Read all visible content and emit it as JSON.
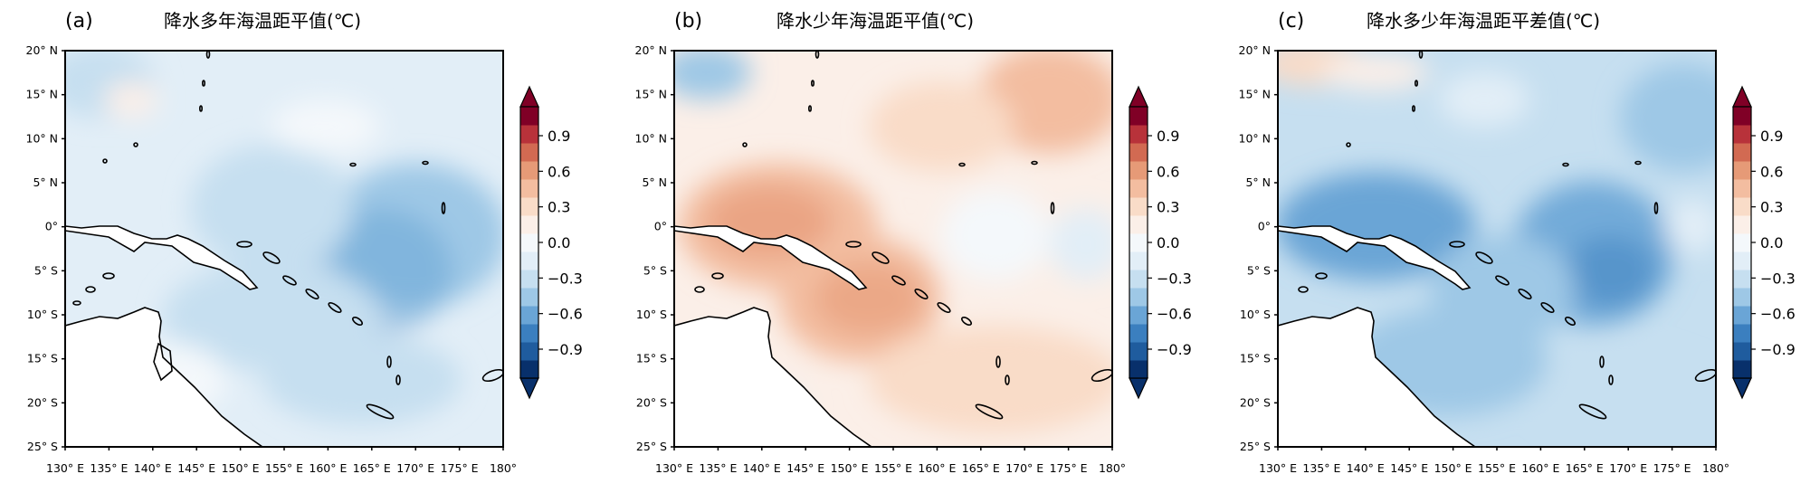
{
  "panels": [
    {
      "label": "(a)",
      "title": "降水多年海温距平值(℃)",
      "pattern": "weak-negative",
      "map_text": {
        "lat": [
          "20° N",
          "15° N",
          "10° N",
          "5° N",
          "0°",
          "5° S",
          "10° S",
          "15° S",
          "20° S",
          "25° S"
        ],
        "lon": [
          "130° E",
          "135° E",
          "140° E",
          "145° E",
          "150° E",
          "155° E",
          "160° E",
          "165° E",
          "170° E",
          "175° E",
          "180°"
        ]
      },
      "colorbar_ticks": [
        "0.9",
        "0.6",
        "0.3",
        "0.0",
        "−0.3",
        "−0.6",
        "−0.9"
      ]
    },
    {
      "label": "(b)",
      "title": "降水少年海温距平值(℃)",
      "pattern": "weak-positive",
      "map_text": {
        "lat": [
          "20° N",
          "15° N",
          "10° N",
          "5° N",
          "0°",
          "5° S",
          "10° S",
          "15° S",
          "20° S",
          "25° S"
        ],
        "lon": [
          "130° E",
          "135° E",
          "140° E",
          "145° E",
          "150° E",
          "155° E",
          "160° E",
          "165° E",
          "170° E",
          "175° E",
          "180°"
        ]
      },
      "colorbar_ticks": [
        "0.9",
        "0.6",
        "0.3",
        "0.0",
        "−0.3",
        "−0.6",
        "−0.9"
      ]
    },
    {
      "label": "(c)",
      "title": "降水多少年海温距平差值(℃)",
      "pattern": "moderate-negative",
      "map_text": {
        "lat": [
          "20° N",
          "15° N",
          "10° N",
          "5° N",
          "0°",
          "5° S",
          "10° S",
          "15° S",
          "20° S",
          "25° S"
        ],
        "lon": [
          "130° E",
          "135° E",
          "140° E",
          "145° E",
          "150° E",
          "155° E",
          "160° E",
          "165° E",
          "170° E",
          "175° E",
          "180°"
        ]
      },
      "colorbar_ticks": [
        "0.9",
        "0.6",
        "0.3",
        "0.0",
        "−0.3",
        "−0.6",
        "−0.9"
      ]
    }
  ],
  "colors": {
    "scale": [
      "#08306b",
      "#1f5c9e",
      "#3b7fbf",
      "#6aa5d6",
      "#9ec8e6",
      "#c6dff0",
      "#e2eef7",
      "#f4f8fb",
      "#fbefe8",
      "#f9dcc8",
      "#f3bda0",
      "#e69a77",
      "#d26a52",
      "#b8323a",
      "#800026"
    ]
  }
}
